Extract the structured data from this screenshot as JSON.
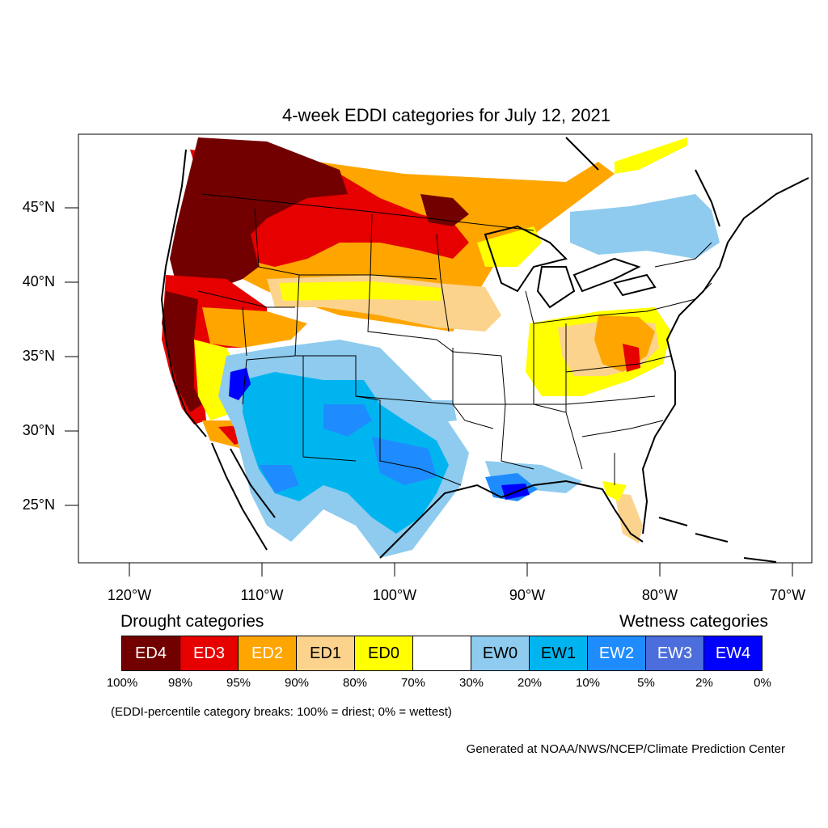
{
  "title": "4-week EDDI categories for July 12, 2021",
  "lat_labels": [
    "45°N",
    "40°N",
    "35°N",
    "30°N",
    "25°N"
  ],
  "lon_labels": [
    "120°W",
    "110°W",
    "100°W",
    "90°W",
    "80°W",
    "70°W"
  ],
  "legend": {
    "drought_heading": "Drought categories",
    "wetness_heading": "Wetness categories",
    "categories": [
      {
        "label": "ED4",
        "color": "#730000"
      },
      {
        "label": "ED3",
        "color": "#e60000"
      },
      {
        "label": "ED2",
        "color": "#ffa500"
      },
      {
        "label": "ED1",
        "color": "#fcd38c"
      },
      {
        "label": "ED0",
        "color": "#ffff00"
      },
      {
        "label": "",
        "color": "#ffffff"
      },
      {
        "label": "EW0",
        "color": "#8ecbef"
      },
      {
        "label": "EW1",
        "color": "#00b5ef"
      },
      {
        "label": "EW2",
        "color": "#1e8cff"
      },
      {
        "label": "EW3",
        "color": "#4b6edc"
      },
      {
        "label": "EW4",
        "color": "#0000ff"
      }
    ],
    "percentiles": [
      "100%",
      "98%",
      "95%",
      "90%",
      "80%",
      "70%",
      "30%",
      "20%",
      "10%",
      "5%",
      "2%",
      "0%"
    ]
  },
  "note": "(EDDI-percentile category breaks: 100% = driest; 0% = wettest)",
  "credit": "Generated at NOAA/NWS/NCEP/Climate Prediction Center"
}
